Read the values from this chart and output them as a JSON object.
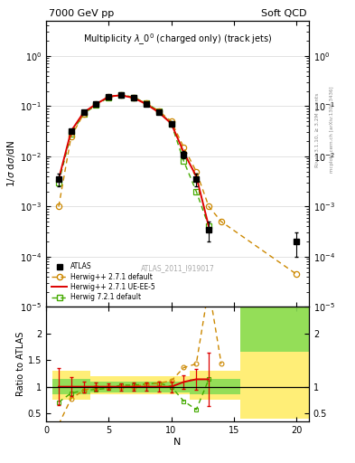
{
  "title_left": "7000 GeV pp",
  "title_right": "Soft QCD",
  "plot_title": "Multiplicity $\\lambda$_0$^0$ (charged only) (track jets)",
  "ylabel_main": "1/$\\sigma$ d$\\sigma$/dN",
  "ylabel_ratio": "Ratio to ATLAS",
  "xlabel": "N",
  "watermark": "ATLAS_2011_I919017",
  "right_label": "Rivet 3.1.10, ≥ 3.2M events",
  "right_label2": "mcplots.cern.ch [arXiv:1306.3436]",
  "atlas_N": [
    1,
    2,
    3,
    4,
    5,
    6,
    7,
    8,
    9,
    10,
    11,
    12,
    13,
    20
  ],
  "atlas_y": [
    0.0035,
    0.032,
    0.075,
    0.11,
    0.155,
    0.165,
    0.145,
    0.11,
    0.075,
    0.045,
    0.011,
    0.0035,
    0.00035,
    0.0002
  ],
  "atlas_yerr": [
    0.001,
    0.003,
    0.004,
    0.005,
    0.006,
    0.006,
    0.006,
    0.005,
    0.004,
    0.003,
    0.002,
    0.001,
    0.00015,
    0.0001
  ],
  "hw271def_N": [
    1,
    2,
    3,
    4,
    5,
    6,
    7,
    8,
    9,
    10,
    11,
    12,
    13,
    14,
    20
  ],
  "hw271def_y": [
    0.001,
    0.025,
    0.07,
    0.11,
    0.155,
    0.165,
    0.145,
    0.115,
    0.08,
    0.05,
    0.015,
    0.005,
    0.001,
    0.0005,
    4.5e-05
  ],
  "hw271ue_N": [
    1,
    2,
    3,
    4,
    5,
    6,
    7,
    8,
    9,
    10,
    11,
    12,
    13
  ],
  "hw271ue_y": [
    0.0035,
    0.032,
    0.075,
    0.11,
    0.155,
    0.165,
    0.145,
    0.11,
    0.075,
    0.045,
    0.012,
    0.004,
    0.0004
  ],
  "hw721def_N": [
    1,
    2,
    3,
    4,
    5,
    6,
    7,
    8,
    9,
    10,
    11,
    12,
    13
  ],
  "hw721def_y": [
    0.003,
    0.028,
    0.07,
    0.105,
    0.15,
    0.17,
    0.15,
    0.115,
    0.08,
    0.045,
    0.008,
    0.002,
    0.0004
  ],
  "ratio_hw271def_N": [
    1,
    2,
    3,
    4,
    5,
    6,
    7,
    8,
    9,
    10,
    11,
    12,
    13,
    14
  ],
  "ratio_hw271def_y": [
    0.29,
    0.78,
    0.93,
    1.0,
    1.0,
    1.0,
    1.0,
    1.05,
    1.07,
    1.11,
    1.36,
    1.43,
    2.86,
    1.43
  ],
  "ratio_hw271ue_N": [
    1,
    2,
    3,
    4,
    5,
    6,
    7,
    8,
    9,
    10,
    11,
    12,
    13
  ],
  "ratio_hw271ue_y": [
    1.0,
    1.0,
    1.0,
    1.0,
    1.0,
    1.0,
    1.0,
    1.0,
    1.0,
    1.0,
    1.09,
    1.14,
    1.14
  ],
  "ratio_hw271ue_err": [
    0.35,
    0.18,
    0.1,
    0.08,
    0.06,
    0.07,
    0.08,
    0.08,
    0.09,
    0.1,
    0.13,
    0.2,
    0.5
  ],
  "ratio_hw721def_N": [
    1,
    2,
    3,
    4,
    5,
    6,
    7,
    8,
    9,
    10,
    11,
    12,
    13
  ],
  "ratio_hw721def_y": [
    0.71,
    0.88,
    0.93,
    0.95,
    0.97,
    1.03,
    1.03,
    1.05,
    1.07,
    1.0,
    0.73,
    0.57,
    1.14
  ],
  "color_atlas": "#000000",
  "color_hw271def": "#cc8800",
  "color_hw271ue": "#dd0000",
  "color_hw721def": "#44aa00",
  "ylim_main": [
    1e-05,
    5
  ],
  "ylim_ratio": [
    0.35,
    2.5
  ],
  "xlim": [
    0.5,
    21
  ]
}
